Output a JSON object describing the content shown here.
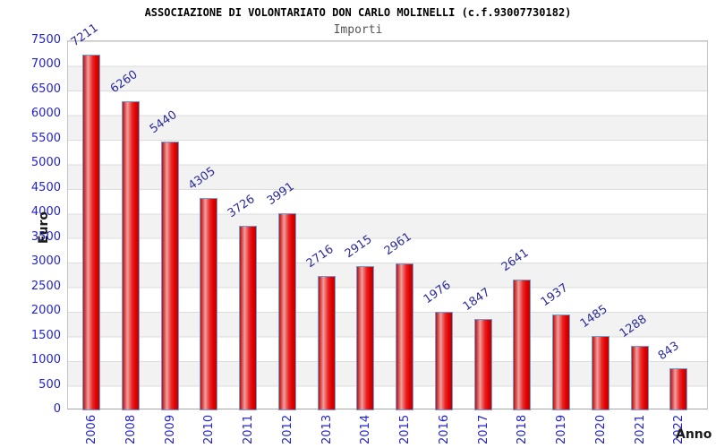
{
  "chart_data": {
    "type": "bar",
    "title": "ASSOCIAZIONE DI VOLONTARIATO DON CARLO MOLINELLI (c.f.93007730182)",
    "subtitle": "Importi",
    "xlabel": "Anno",
    "ylabel": "Euro",
    "categories": [
      "2006",
      "2008",
      "2009",
      "2010",
      "2011",
      "2012",
      "2013",
      "2014",
      "2015",
      "2016",
      "2017",
      "2018",
      "2019",
      "2020",
      "2021",
      "2022"
    ],
    "values": [
      7211,
      6260,
      5440,
      4305,
      3726,
      3991,
      2716,
      2915,
      2961,
      1976,
      1847,
      2641,
      1937,
      1485,
      1288,
      843
    ],
    "y_ticks": [
      7500,
      7000,
      6500,
      6000,
      5500,
      5000,
      4500,
      4000,
      3500,
      3000,
      2500,
      2000,
      1500,
      1000,
      500,
      0
    ],
    "ylim": [
      0,
      7500
    ],
    "grid": "horizontal alternating bands every 500",
    "legend": "none",
    "colors": {
      "bar_fill": "#e10000",
      "bar_highlight": "#efa0a0",
      "bar_border": "#6a9fd8",
      "tick_label": "#2323cb",
      "value_label": "#2b2b9b",
      "band": "#f2f2f2",
      "gridline": "#dcdcdc",
      "axis_label": "#1a1a1a",
      "title": "#000000",
      "subtitle": "#555555"
    }
  }
}
